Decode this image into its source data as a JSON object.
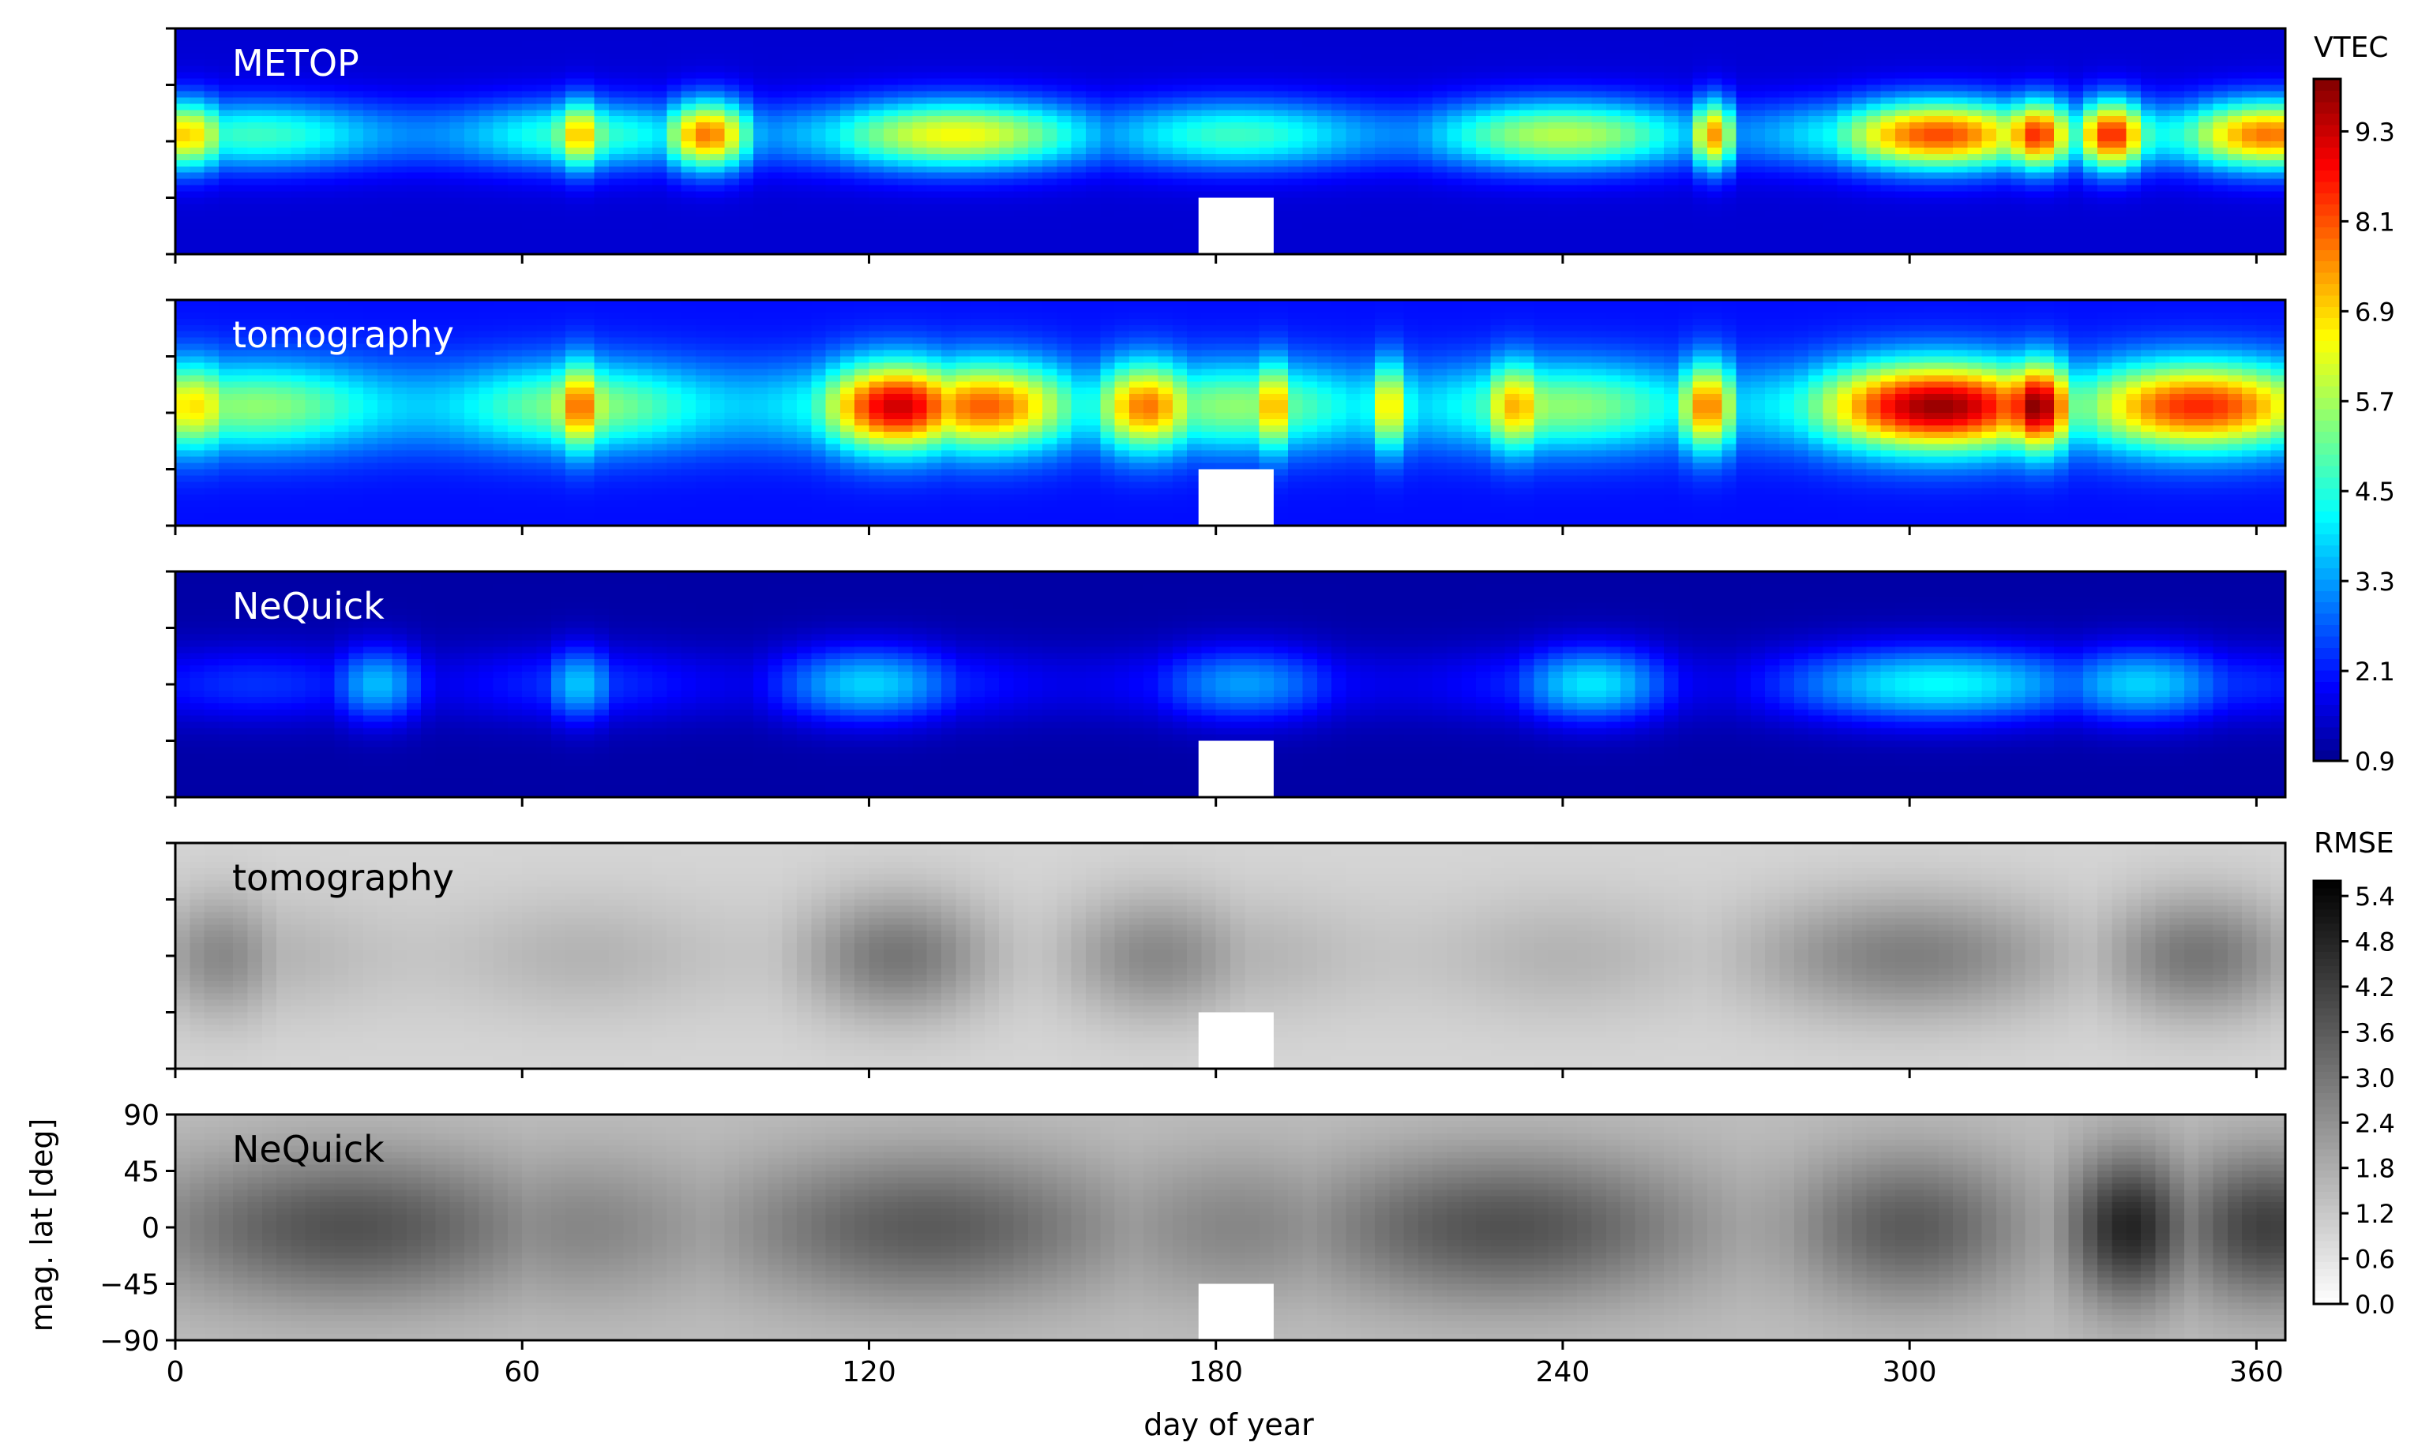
{
  "chart_data": {
    "type": "heatmap",
    "x_axis": {
      "label": "day of year",
      "range": [
        0,
        365
      ],
      "ticks": [
        0,
        60,
        120,
        180,
        240,
        300,
        360
      ],
      "tick_labels": [
        "0",
        "60",
        "120",
        "180",
        "240",
        "300",
        "360"
      ]
    },
    "y_axis": {
      "label": "mag. lat [deg]",
      "range": [
        -90,
        90
      ],
      "ticks": [
        90,
        45,
        0,
        -45,
        -90
      ],
      "tick_labels": [
        "90",
        "45",
        "0",
        "−45",
        "−90"
      ]
    },
    "data_gap": {
      "day_from": 177,
      "day_to": 190,
      "lat_from": -90,
      "lat_to": -45
    },
    "panels": [
      {
        "label": "METOP",
        "colormap": "jet",
        "label_color": "#ffffff",
        "band_center_lat": 5,
        "band_width_deg": 28,
        "background": 1.5,
        "peaks": [
          {
            "day": 2,
            "value": 7.0,
            "width": 6
          },
          {
            "day": 70,
            "value": 7.2,
            "width": 4
          },
          {
            "day": 92,
            "value": 7.8,
            "width": 6
          },
          {
            "day": 135,
            "value": 6.5,
            "width": 18
          },
          {
            "day": 240,
            "value": 5.9,
            "width": 18
          },
          {
            "day": 266,
            "value": 7.5,
            "width": 3
          },
          {
            "day": 305,
            "value": 8.2,
            "width": 14
          },
          {
            "day": 322,
            "value": 8.5,
            "width": 5
          },
          {
            "day": 335,
            "value": 8.6,
            "width": 5
          },
          {
            "day": 362,
            "value": 7.8,
            "width": 12
          }
        ]
      },
      {
        "label": "tomography",
        "colormap": "jet",
        "label_color": "#ffffff",
        "band_center_lat": 5,
        "band_width_deg": 36,
        "background": 2.0,
        "peaks": [
          {
            "day": 3,
            "value": 6.8,
            "width": 7
          },
          {
            "day": 70,
            "value": 8.0,
            "width": 4
          },
          {
            "day": 125,
            "value": 9.3,
            "width": 10
          },
          {
            "day": 140,
            "value": 8.0,
            "width": 12
          },
          {
            "day": 168,
            "value": 7.8,
            "width": 7
          },
          {
            "day": 190,
            "value": 7.5,
            "width": 3
          },
          {
            "day": 210,
            "value": 6.9,
            "width": 3
          },
          {
            "day": 232,
            "value": 7.3,
            "width": 5
          },
          {
            "day": 265,
            "value": 7.8,
            "width": 4
          },
          {
            "day": 305,
            "value": 9.8,
            "width": 16
          },
          {
            "day": 322,
            "value": 10.0,
            "width": 5
          },
          {
            "day": 350,
            "value": 8.5,
            "width": 16
          }
        ]
      },
      {
        "label": "NeQuick",
        "colormap": "jet",
        "label_color": "#ffffff",
        "band_center_lat": 0,
        "band_width_deg": 30,
        "background": 1.1,
        "peaks": [
          {
            "day": 35,
            "value": 3.6,
            "width": 6
          },
          {
            "day": 70,
            "value": 3.7,
            "width": 5
          },
          {
            "day": 120,
            "value": 3.8,
            "width": 12
          },
          {
            "day": 185,
            "value": 3.3,
            "width": 12
          },
          {
            "day": 245,
            "value": 4.0,
            "width": 10
          },
          {
            "day": 305,
            "value": 4.2,
            "width": 20
          },
          {
            "day": 340,
            "value": 3.8,
            "width": 12
          }
        ]
      },
      {
        "label": "tomography",
        "colormap": "gray_r",
        "label_color": "#000000",
        "band_center_lat": 0,
        "band_width_deg": 50,
        "background": 0.9,
        "peaks": [
          {
            "day": 8,
            "value": 2.6,
            "width": 8
          },
          {
            "day": 125,
            "value": 3.0,
            "width": 12
          },
          {
            "day": 170,
            "value": 2.6,
            "width": 12
          },
          {
            "day": 300,
            "value": 2.8,
            "width": 20
          },
          {
            "day": 350,
            "value": 3.0,
            "width": 12
          }
        ]
      },
      {
        "label": "NeQuick",
        "colormap": "gray_r",
        "label_color": "#000000",
        "band_center_lat": 0,
        "band_width_deg": 60,
        "background": 1.4,
        "peaks": [
          {
            "day": 30,
            "value": 3.8,
            "width": 25
          },
          {
            "day": 130,
            "value": 3.6,
            "width": 25
          },
          {
            "day": 230,
            "value": 3.8,
            "width": 25
          },
          {
            "day": 300,
            "value": 3.6,
            "width": 15
          },
          {
            "day": 338,
            "value": 4.8,
            "width": 8
          },
          {
            "day": 362,
            "value": 4.2,
            "width": 12
          }
        ]
      }
    ],
    "colorbars": [
      {
        "title": "VTEC",
        "colormap": "jet",
        "range": [
          0.9,
          10.0
        ],
        "ticks": [
          0.9,
          2.1,
          3.3,
          4.5,
          5.7,
          6.9,
          8.1,
          9.3
        ],
        "tick_labels": [
          "0.9",
          "2.1",
          "3.3",
          "4.5",
          "5.7",
          "6.9",
          "8.1",
          "9.3"
        ]
      },
      {
        "title": "RMSE",
        "colormap": "gray_r",
        "range": [
          0.0,
          5.6
        ],
        "ticks": [
          0.0,
          0.6,
          1.2,
          1.8,
          2.4,
          3.0,
          3.6,
          4.2,
          4.8,
          5.4
        ],
        "tick_labels": [
          "0.0",
          "0.6",
          "1.2",
          "1.8",
          "2.4",
          "3.0",
          "3.6",
          "4.2",
          "4.8",
          "5.4"
        ]
      }
    ]
  }
}
